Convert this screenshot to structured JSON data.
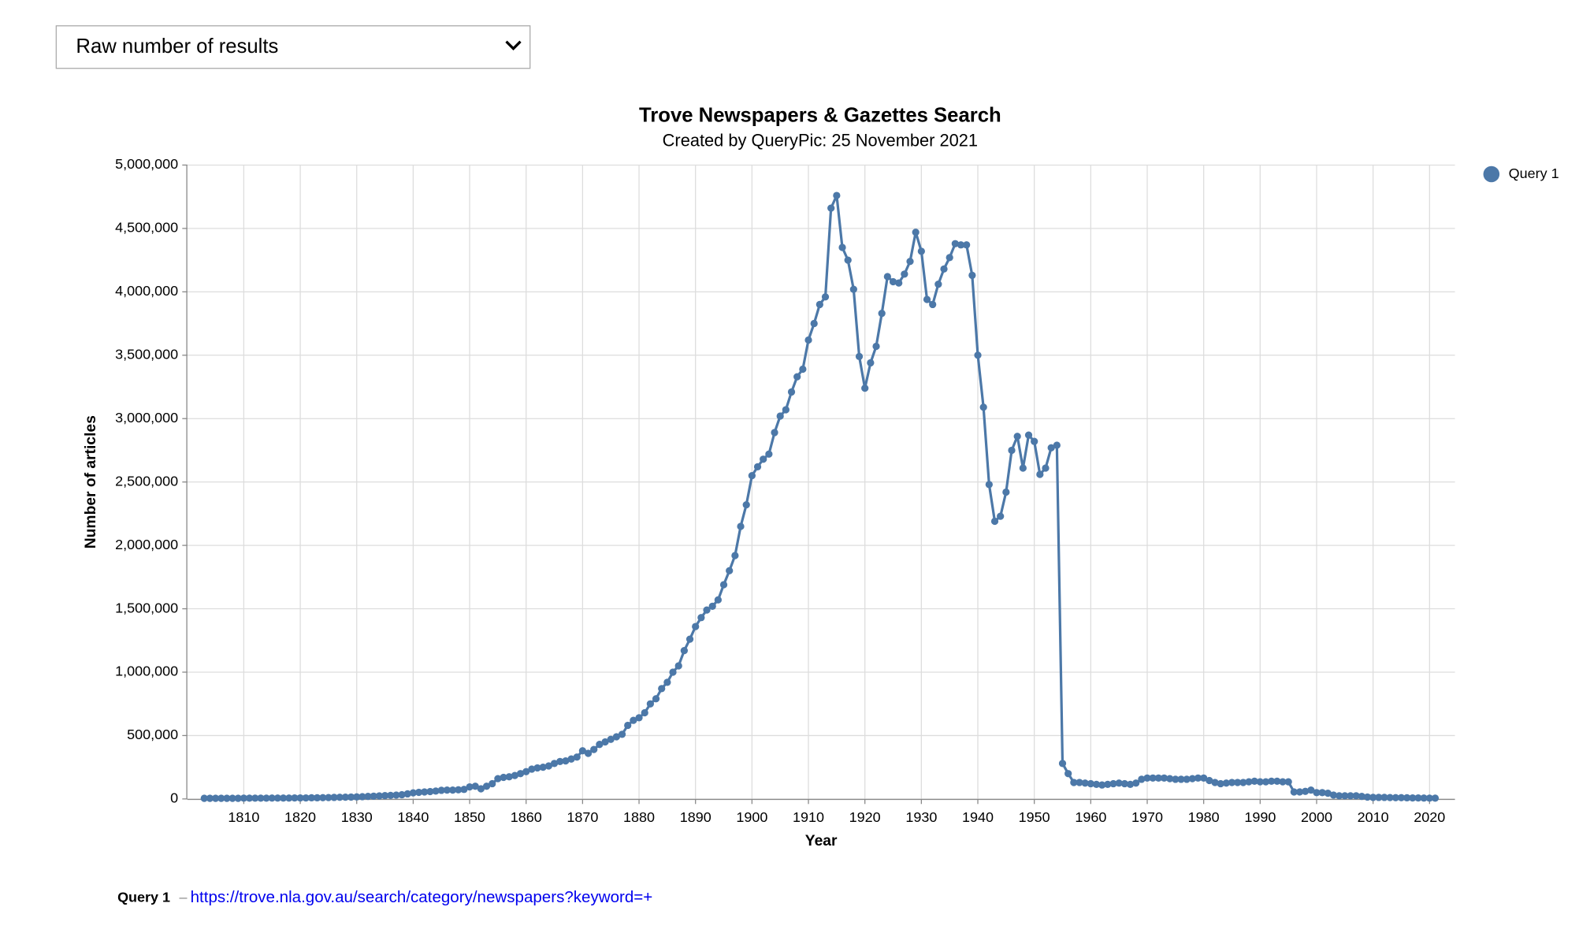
{
  "dropdown": {
    "label": "Raw number of results"
  },
  "chart_data": {
    "type": "line",
    "title": "Trove Newspapers & Gazettes Search",
    "subtitle": "Created by QueryPic: 25 November 2021",
    "x_label": "Year",
    "y_label": "Number of articles",
    "grid": true,
    "legend": "top-right",
    "xlim": [
      1800,
      2024.5
    ],
    "ylim": [
      0,
      5000000
    ],
    "xticks": [
      1810,
      1820,
      1830,
      1840,
      1850,
      1860,
      1870,
      1880,
      1890,
      1900,
      1910,
      1920,
      1930,
      1940,
      1950,
      1960,
      1970,
      1980,
      1990,
      2000,
      2010,
      2020
    ],
    "yticks": [
      0,
      {
        "value": 500000,
        "label": "500,000"
      },
      {
        "value": 1000000,
        "label": "1,000,000"
      },
      {
        "value": 1500000,
        "label": "1,500,000"
      },
      {
        "value": 2000000,
        "label": "2,000,000"
      },
      {
        "value": 2500000,
        "label": "2,500,000"
      },
      {
        "value": 3000000,
        "label": "3,000,000"
      },
      {
        "value": 3500000,
        "label": "3,500,000"
      },
      {
        "value": 4000000,
        "label": "4,000,000"
      },
      {
        "value": 4500000,
        "label": "4,500,000"
      },
      {
        "value": 5000000,
        "label": "5,000,000"
      }
    ],
    "x": [
      1803,
      1804,
      1805,
      1806,
      1807,
      1808,
      1809,
      1810,
      1811,
      1812,
      1813,
      1814,
      1815,
      1816,
      1817,
      1818,
      1819,
      1820,
      1821,
      1822,
      1823,
      1824,
      1825,
      1826,
      1827,
      1828,
      1829,
      1830,
      1831,
      1832,
      1833,
      1834,
      1835,
      1836,
      1837,
      1838,
      1839,
      1840,
      1841,
      1842,
      1843,
      1844,
      1845,
      1846,
      1847,
      1848,
      1849,
      1850,
      1851,
      1852,
      1853,
      1854,
      1855,
      1856,
      1857,
      1858,
      1859,
      1860,
      1861,
      1862,
      1863,
      1864,
      1865,
      1866,
      1867,
      1868,
      1869,
      1870,
      1871,
      1872,
      1873,
      1874,
      1875,
      1876,
      1877,
      1878,
      1879,
      1880,
      1881,
      1882,
      1883,
      1884,
      1885,
      1886,
      1887,
      1888,
      1889,
      1890,
      1891,
      1892,
      1893,
      1894,
      1895,
      1896,
      1897,
      1898,
      1899,
      1900,
      1901,
      1902,
      1903,
      1904,
      1905,
      1906,
      1907,
      1908,
      1909,
      1910,
      1911,
      1912,
      1913,
      1914,
      1915,
      1916,
      1917,
      1918,
      1919,
      1920,
      1921,
      1922,
      1923,
      1924,
      1925,
      1926,
      1927,
      1928,
      1929,
      1930,
      1931,
      1932,
      1933,
      1934,
      1935,
      1936,
      1937,
      1938,
      1939,
      1940,
      1941,
      1942,
      1943,
      1944,
      1945,
      1946,
      1947,
      1948,
      1949,
      1950,
      1951,
      1952,
      1953,
      1954,
      1955,
      1956,
      1957,
      1958,
      1959,
      1960,
      1961,
      1962,
      1963,
      1964,
      1965,
      1966,
      1967,
      1968,
      1969,
      1970,
      1971,
      1972,
      1973,
      1974,
      1975,
      1976,
      1977,
      1978,
      1979,
      1980,
      1981,
      1982,
      1983,
      1984,
      1985,
      1986,
      1987,
      1988,
      1989,
      1990,
      1991,
      1992,
      1993,
      1994,
      1995,
      1996,
      1997,
      1998,
      1999,
      2000,
      2001,
      2002,
      2003,
      2004,
      2005,
      2006,
      2007,
      2008,
      2009,
      2010,
      2011,
      2012,
      2013,
      2014,
      2015,
      2016,
      2017,
      2018,
      2019,
      2020,
      2021
    ],
    "series": [
      {
        "name": "Query 1",
        "color": "#4c78a8",
        "values": [
          5000,
          5000,
          5000,
          5000,
          5000,
          5000,
          5000,
          6000,
          6000,
          6000,
          6000,
          6000,
          7000,
          7000,
          7000,
          7000,
          8000,
          8000,
          8000,
          9000,
          9000,
          10000,
          11000,
          12000,
          13000,
          14000,
          15000,
          16000,
          18000,
          20000,
          22000,
          24000,
          26000,
          28000,
          30000,
          33000,
          40000,
          48000,
          52000,
          55000,
          58000,
          62000,
          68000,
          70000,
          70000,
          72000,
          75000,
          95000,
          100000,
          80000,
          100000,
          120000,
          160000,
          170000,
          175000,
          185000,
          200000,
          215000,
          235000,
          245000,
          250000,
          260000,
          280000,
          295000,
          300000,
          315000,
          330000,
          380000,
          360000,
          390000,
          430000,
          450000,
          470000,
          490000,
          510000,
          580000,
          620000,
          640000,
          680000,
          750000,
          790000,
          870000,
          920000,
          1000000,
          1050000,
          1170000,
          1260000,
          1360000,
          1430000,
          1490000,
          1520000,
          1570000,
          1690000,
          1800000,
          1920000,
          2150000,
          2320000,
          2550000,
          2620000,
          2680000,
          2720000,
          2890000,
          3020000,
          3070000,
          3210000,
          3330000,
          3390000,
          3620000,
          3750000,
          3900000,
          3960000,
          4660000,
          4760000,
          4350000,
          4250000,
          4020000,
          3490000,
          3240000,
          3440000,
          3570000,
          3830000,
          4120000,
          4080000,
          4070000,
          4140000,
          4240000,
          4470000,
          4320000,
          3940000,
          3900000,
          4060000,
          4180000,
          4270000,
          4380000,
          4370000,
          4370000,
          4130000,
          3500000,
          3090000,
          2480000,
          2190000,
          2230000,
          2420000,
          2750000,
          2860000,
          2610000,
          2870000,
          2820000,
          2560000,
          2610000,
          2770000,
          2790000,
          280000,
          200000,
          130000,
          130000,
          125000,
          120000,
          115000,
          110000,
          115000,
          120000,
          125000,
          120000,
          115000,
          125000,
          155000,
          165000,
          165000,
          165000,
          165000,
          160000,
          155000,
          155000,
          155000,
          160000,
          165000,
          165000,
          145000,
          130000,
          120000,
          125000,
          130000,
          130000,
          130000,
          135000,
          140000,
          135000,
          135000,
          140000,
          140000,
          135000,
          135000,
          55000,
          55000,
          60000,
          70000,
          50000,
          50000,
          45000,
          30000,
          25000,
          25000,
          25000,
          25000,
          20000,
          15000,
          12000,
          12000,
          12000,
          11000,
          10000,
          10000,
          9000,
          8000,
          8000,
          7000,
          6000,
          6000
        ]
      }
    ]
  },
  "footer": {
    "query": "Query 1",
    "separator": "–",
    "url": "https://trove.nla.gov.au/search/category/newspapers?keyword=+"
  }
}
